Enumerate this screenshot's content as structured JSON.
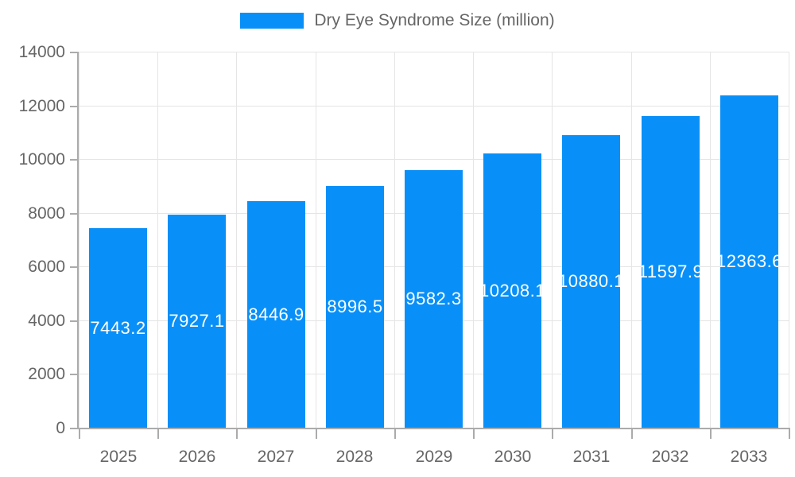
{
  "chart_data": {
    "type": "bar",
    "title": "",
    "legend": "Dry Eye Syndrome Size (million)",
    "legend_position": "top-center",
    "categories": [
      "2025",
      "2026",
      "2027",
      "2028",
      "2029",
      "2030",
      "2031",
      "2032",
      "2033"
    ],
    "values": [
      7443.2,
      7927.1,
      8446.9,
      8996.5,
      9582.3,
      10208.1,
      10880.1,
      11597.9,
      12363.6
    ],
    "bar_labels": [
      "7443.2",
      "7927.1",
      "8446.9",
      "8996.5",
      "9582.3",
      "10208.1",
      "10880.1",
      "11597.9",
      "12363.6"
    ],
    "xlabel": "",
    "ylabel": "",
    "ylim": [
      0,
      14000
    ],
    "yticks": [
      0,
      2000,
      4000,
      6000,
      8000,
      10000,
      12000,
      14000
    ],
    "grid": true,
    "colors": {
      "bar": "#0990f8",
      "axis_text": "#666666",
      "grid_line": "#e5e5e5",
      "axis_line": "#ababab",
      "bar_label_text": "#ffffff"
    }
  }
}
